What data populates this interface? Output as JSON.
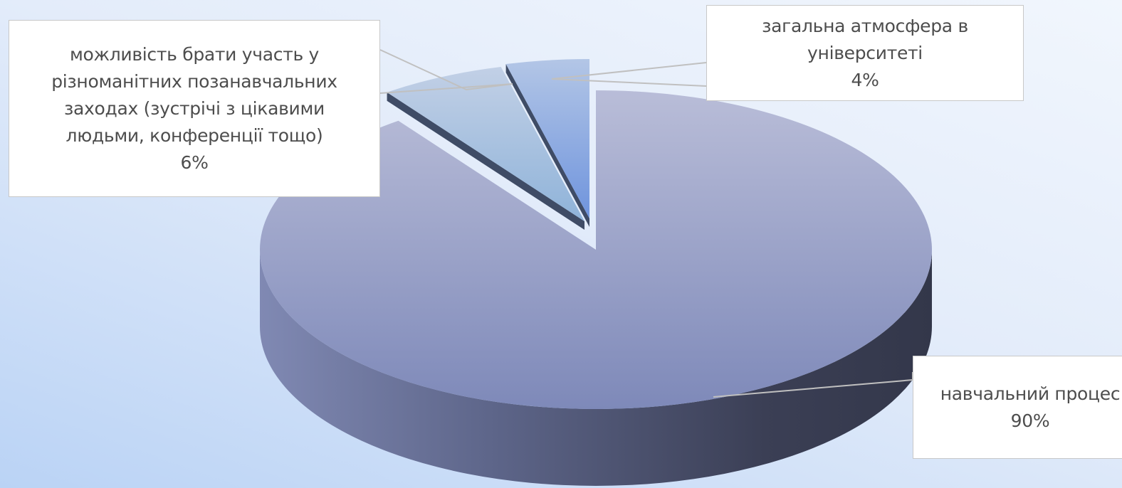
{
  "chart_data": {
    "type": "pie",
    "three_d": true,
    "categories": [
      "навчальний процес",
      "можливість брати участь у різноманітних позанавчальних заходах (зустрічі з цікавими людьми, конференції тощо)",
      "загальна атмосфера в університеті"
    ],
    "values": [
      90,
      6,
      4
    ],
    "value_labels": [
      "90%",
      "6%",
      "4%"
    ],
    "label_lines": [
      [
        "навчальний процес"
      ],
      [
        "можливість брати участь у",
        "різноманітних позанавчальних",
        "заходах (зустрічі з цікавими",
        "людьми, конференції тощо)"
      ],
      [
        "загальна атмосфера в",
        "університеті"
      ]
    ],
    "exploded": [
      false,
      true,
      true
    ],
    "legend": "none",
    "colors": {
      "main_top_light": "#b9bdd8",
      "main_top_dark": "#7e89b9",
      "main_side_light": "#8089b3",
      "main_side_dark": "#33374a",
      "slice2_light": "#c2d0e6",
      "slice2_dark": "#8fb3d9",
      "slice3_light": "#b3c6e6",
      "slice3_dark": "#6f94dd",
      "leader_line": "#c0c0c0"
    }
  }
}
